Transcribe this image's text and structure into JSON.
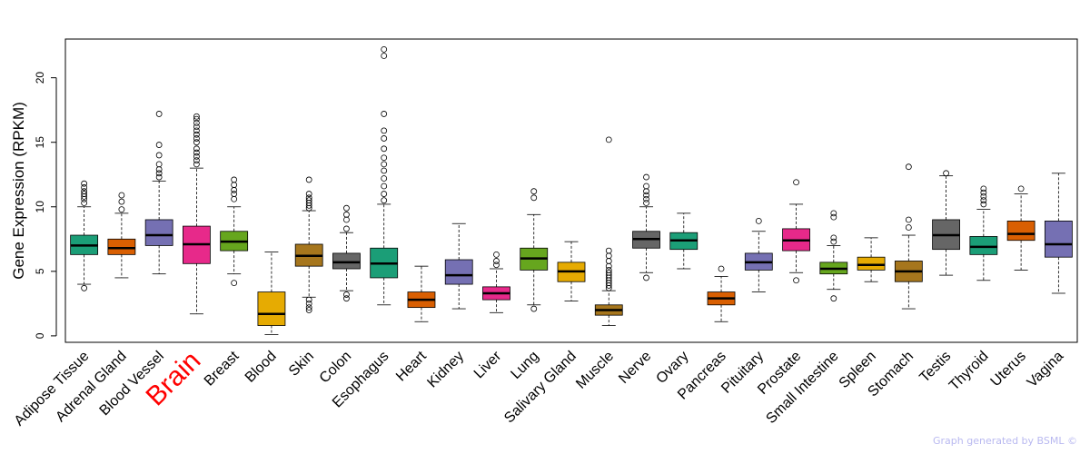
{
  "chart_data": {
    "type": "boxplot",
    "title": "",
    "xlabel": "",
    "ylabel": "Gene Expression (RPKM)",
    "ylim": [
      -0.5,
      23
    ],
    "yticks": [
      0,
      5,
      10,
      15,
      20
    ],
    "highlight": "Brain",
    "highlight_color": "#ff0000",
    "credit": "Graph generated by BSML ©",
    "series": [
      {
        "name": "Adipose Tissue",
        "color": "#1b9e77",
        "min": 4.0,
        "q1": 6.3,
        "median": 7.0,
        "q3": 7.8,
        "max": 10.0,
        "outliers": [
          3.7,
          10.3,
          10.6,
          10.8,
          11.0,
          11.2,
          11.5,
          11.8
        ]
      },
      {
        "name": "Adrenal Gland",
        "color": "#d95f02",
        "min": 4.5,
        "q1": 6.3,
        "median": 6.8,
        "q3": 7.5,
        "max": 9.5,
        "outliers": [
          9.8,
          10.4,
          10.9
        ]
      },
      {
        "name": "Blood Vessel",
        "color": "#7570b3",
        "min": 4.8,
        "q1": 7.0,
        "median": 7.8,
        "q3": 9.0,
        "max": 12.0,
        "outliers": [
          12.3,
          12.6,
          12.9,
          13.3,
          14.0,
          14.8,
          17.2
        ]
      },
      {
        "name": "Brain",
        "color": "#e7298a",
        "min": 1.7,
        "q1": 5.6,
        "median": 7.1,
        "q3": 8.5,
        "max": 13.0,
        "outliers": [
          13.3,
          13.6,
          13.9,
          14.2,
          14.5,
          15.0,
          15.3,
          15.6,
          15.9,
          16.2,
          16.5,
          16.8,
          17.0
        ]
      },
      {
        "name": "Breast",
        "color": "#66a61e",
        "min": 4.8,
        "q1": 6.6,
        "median": 7.3,
        "q3": 8.1,
        "max": 10.0,
        "outliers": [
          4.1,
          10.6,
          11.0,
          11.3,
          11.7,
          12.1
        ]
      },
      {
        "name": "Blood",
        "color": "#e6ab02",
        "min": 0.1,
        "q1": 0.8,
        "median": 1.7,
        "q3": 3.4,
        "max": 6.5,
        "outliers": []
      },
      {
        "name": "Skin",
        "color": "#a6761d",
        "min": 3.0,
        "q1": 5.4,
        "median": 6.2,
        "q3": 7.1,
        "max": 9.7,
        "outliers": [
          2.0,
          2.2,
          2.5,
          2.8,
          9.9,
          10.1,
          10.3,
          10.5,
          10.7,
          11.0,
          12.1
        ]
      },
      {
        "name": "Colon",
        "color": "#666666",
        "min": 3.5,
        "q1": 5.2,
        "median": 5.7,
        "q3": 6.4,
        "max": 8.0,
        "outliers": [
          2.9,
          3.2,
          8.3,
          9.0,
          9.4,
          9.9
        ]
      },
      {
        "name": "Esophagus",
        "color": "#1b9e77",
        "min": 2.4,
        "q1": 4.5,
        "median": 5.6,
        "q3": 6.8,
        "max": 10.2,
        "outliers": [
          10.5,
          11.0,
          11.6,
          12.2,
          12.8,
          13.3,
          13.8,
          14.5,
          15.3,
          15.9,
          17.2,
          21.7,
          22.2
        ]
      },
      {
        "name": "Heart",
        "color": "#d95f02",
        "min": 1.1,
        "q1": 2.2,
        "median": 2.8,
        "q3": 3.4,
        "max": 5.4,
        "outliers": []
      },
      {
        "name": "Kidney",
        "color": "#7570b3",
        "min": 2.1,
        "q1": 4.0,
        "median": 4.7,
        "q3": 5.9,
        "max": 8.7,
        "outliers": []
      },
      {
        "name": "Liver",
        "color": "#e7298a",
        "min": 1.8,
        "q1": 2.8,
        "median": 3.3,
        "q3": 3.8,
        "max": 5.2,
        "outliers": [
          5.5,
          5.8,
          6.3
        ]
      },
      {
        "name": "Lung",
        "color": "#66a61e",
        "min": 2.4,
        "q1": 5.1,
        "median": 6.0,
        "q3": 6.8,
        "max": 9.4,
        "outliers": [
          2.1,
          10.7,
          11.2
        ]
      },
      {
        "name": "Salivary Gland",
        "color": "#e6ab02",
        "min": 2.7,
        "q1": 4.2,
        "median": 5.0,
        "q3": 5.7,
        "max": 7.3,
        "outliers": []
      },
      {
        "name": "Muscle",
        "color": "#a6761d",
        "min": 0.8,
        "q1": 1.6,
        "median": 2.0,
        "q3": 2.4,
        "max": 3.5,
        "outliers": [
          3.7,
          3.9,
          4.1,
          4.3,
          4.5,
          4.7,
          4.9,
          5.1,
          5.4,
          5.8,
          6.2,
          6.6,
          15.2
        ]
      },
      {
        "name": "Nerve",
        "color": "#666666",
        "min": 4.9,
        "q1": 6.8,
        "median": 7.5,
        "q3": 8.1,
        "max": 10.0,
        "outliers": [
          4.5,
          10.3,
          10.6,
          10.9,
          11.2,
          11.6,
          12.3
        ]
      },
      {
        "name": "Ovary",
        "color": "#1b9e77",
        "min": 5.2,
        "q1": 6.7,
        "median": 7.4,
        "q3": 8.0,
        "max": 9.5,
        "outliers": []
      },
      {
        "name": "Pancreas",
        "color": "#d95f02",
        "min": 1.1,
        "q1": 2.4,
        "median": 2.9,
        "q3": 3.4,
        "max": 4.6,
        "outliers": [
          5.2
        ]
      },
      {
        "name": "Pituitary",
        "color": "#7570b3",
        "min": 3.4,
        "q1": 5.1,
        "median": 5.7,
        "q3": 6.4,
        "max": 8.1,
        "outliers": [
          8.9
        ]
      },
      {
        "name": "Prostate",
        "color": "#e7298a",
        "min": 4.9,
        "q1": 6.6,
        "median": 7.4,
        "q3": 8.3,
        "max": 10.2,
        "outliers": [
          4.3,
          11.9
        ]
      },
      {
        "name": "Small Intestine",
        "color": "#66a61e",
        "min": 3.6,
        "q1": 4.8,
        "median": 5.2,
        "q3": 5.7,
        "max": 7.0,
        "outliers": [
          2.9,
          7.3,
          7.6,
          9.2,
          9.5
        ]
      },
      {
        "name": "Spleen",
        "color": "#e6ab02",
        "min": 4.2,
        "q1": 5.1,
        "median": 5.5,
        "q3": 6.1,
        "max": 7.6,
        "outliers": []
      },
      {
        "name": "Stomach",
        "color": "#a6761d",
        "min": 2.1,
        "q1": 4.2,
        "median": 5.0,
        "q3": 5.8,
        "max": 7.8,
        "outliers": [
          8.4,
          9.0,
          13.1
        ]
      },
      {
        "name": "Testis",
        "color": "#666666",
        "min": 4.7,
        "q1": 6.7,
        "median": 7.8,
        "q3": 9.0,
        "max": 12.4,
        "outliers": [
          12.6
        ]
      },
      {
        "name": "Thyroid",
        "color": "#1b9e77",
        "min": 4.3,
        "q1": 6.3,
        "median": 6.9,
        "q3": 7.7,
        "max": 9.8,
        "outliers": [
          10.2,
          10.5,
          10.8,
          11.1,
          11.4
        ]
      },
      {
        "name": "Uterus",
        "color": "#d95f02",
        "min": 5.1,
        "q1": 7.4,
        "median": 7.9,
        "q3": 8.9,
        "max": 11.0,
        "outliers": [
          11.4
        ]
      },
      {
        "name": "Vagina",
        "color": "#7570b3",
        "min": 3.3,
        "q1": 6.1,
        "median": 7.1,
        "q3": 8.9,
        "max": 12.6,
        "outliers": []
      }
    ]
  }
}
